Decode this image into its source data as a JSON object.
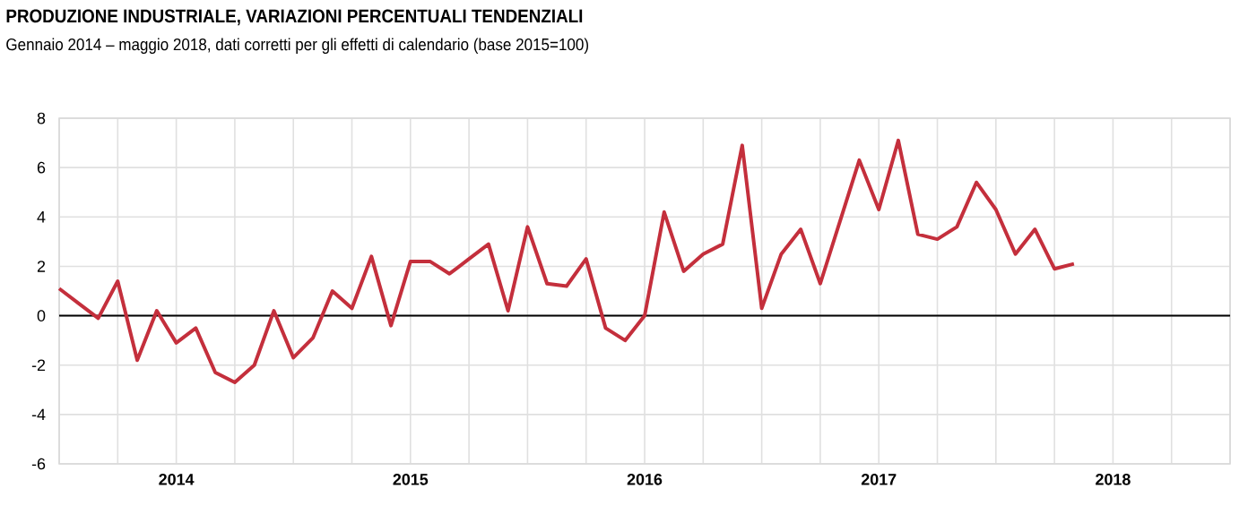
{
  "chart_data": {
    "type": "line",
    "title": "PRODUZIONE INDUSTRIALE, VARIAZIONI PERCENTUALI TENDENZIALI",
    "subtitle": "Gennaio 2014 – maggio 2018, dati corretti per gli effetti di calendario (base 2015=100)",
    "x": [
      "2014-01",
      "2014-02",
      "2014-03",
      "2014-04",
      "2014-05",
      "2014-06",
      "2014-07",
      "2014-08",
      "2014-09",
      "2014-10",
      "2014-11",
      "2014-12",
      "2015-01",
      "2015-02",
      "2015-03",
      "2015-04",
      "2015-05",
      "2015-06",
      "2015-07",
      "2015-08",
      "2015-09",
      "2015-10",
      "2015-11",
      "2015-12",
      "2016-01",
      "2016-02",
      "2016-03",
      "2016-04",
      "2016-05",
      "2016-06",
      "2016-07",
      "2016-08",
      "2016-09",
      "2016-10",
      "2016-11",
      "2016-12",
      "2017-01",
      "2017-02",
      "2017-03",
      "2017-04",
      "2017-05",
      "2017-06",
      "2017-07",
      "2017-08",
      "2017-09",
      "2017-10",
      "2017-11",
      "2017-12",
      "2018-01",
      "2018-02",
      "2018-03",
      "2018-04",
      "2018-05"
    ],
    "series": [
      {
        "color": "#c42f3c",
        "values": [
          1.1,
          0.5,
          -0.1,
          1.4,
          -1.8,
          0.2,
          -1.1,
          -0.5,
          -2.3,
          -2.7,
          -2.0,
          0.2,
          -1.7,
          -0.9,
          1.0,
          0.3,
          2.4,
          -0.4,
          2.2,
          2.2,
          1.7,
          2.3,
          2.9,
          0.2,
          3.6,
          1.3,
          1.2,
          2.3,
          -0.5,
          -1.0,
          0.0,
          4.2,
          1.8,
          2.5,
          2.9,
          6.9,
          0.3,
          2.5,
          3.5,
          1.3,
          3.8,
          6.3,
          4.3,
          7.1,
          3.3,
          3.1,
          3.6,
          5.4,
          4.3,
          2.5,
          3.5,
          1.9,
          2.1
        ]
      }
    ],
    "xlim": [
      "2014-01",
      "2019-01"
    ],
    "xticks": [
      {
        "value": "2014-01",
        "label": null
      },
      {
        "value": "2014-04",
        "label": null
      },
      {
        "value": "2014-07",
        "label": "2014"
      },
      {
        "value": "2014-10",
        "label": null
      },
      {
        "value": "2015-01",
        "label": null
      },
      {
        "value": "2015-04",
        "label": null
      },
      {
        "value": "2015-07",
        "label": "2015"
      },
      {
        "value": "2015-10",
        "label": null
      },
      {
        "value": "2016-01",
        "label": null
      },
      {
        "value": "2016-04",
        "label": null
      },
      {
        "value": "2016-07",
        "label": "2016"
      },
      {
        "value": "2016-10",
        "label": null
      },
      {
        "value": "2017-01",
        "label": null
      },
      {
        "value": "2017-04",
        "label": null
      },
      {
        "value": "2017-07",
        "label": "2017"
      },
      {
        "value": "2017-10",
        "label": null
      },
      {
        "value": "2018-01",
        "label": null
      },
      {
        "value": "2018-04",
        "label": null
      },
      {
        "value": "2018-07",
        "label": "2018"
      },
      {
        "value": "2018-10",
        "label": null
      },
      {
        "value": "2019-01",
        "label": null
      }
    ],
    "ylim": [
      -6,
      8
    ],
    "yticks": [
      -6,
      -4,
      -2,
      0,
      2,
      4,
      6,
      8
    ],
    "grid": true,
    "marker": "none",
    "line_style": "solid",
    "ref_lines": [
      {
        "axis": "y",
        "value": 0,
        "color": "#000000"
      }
    ]
  }
}
